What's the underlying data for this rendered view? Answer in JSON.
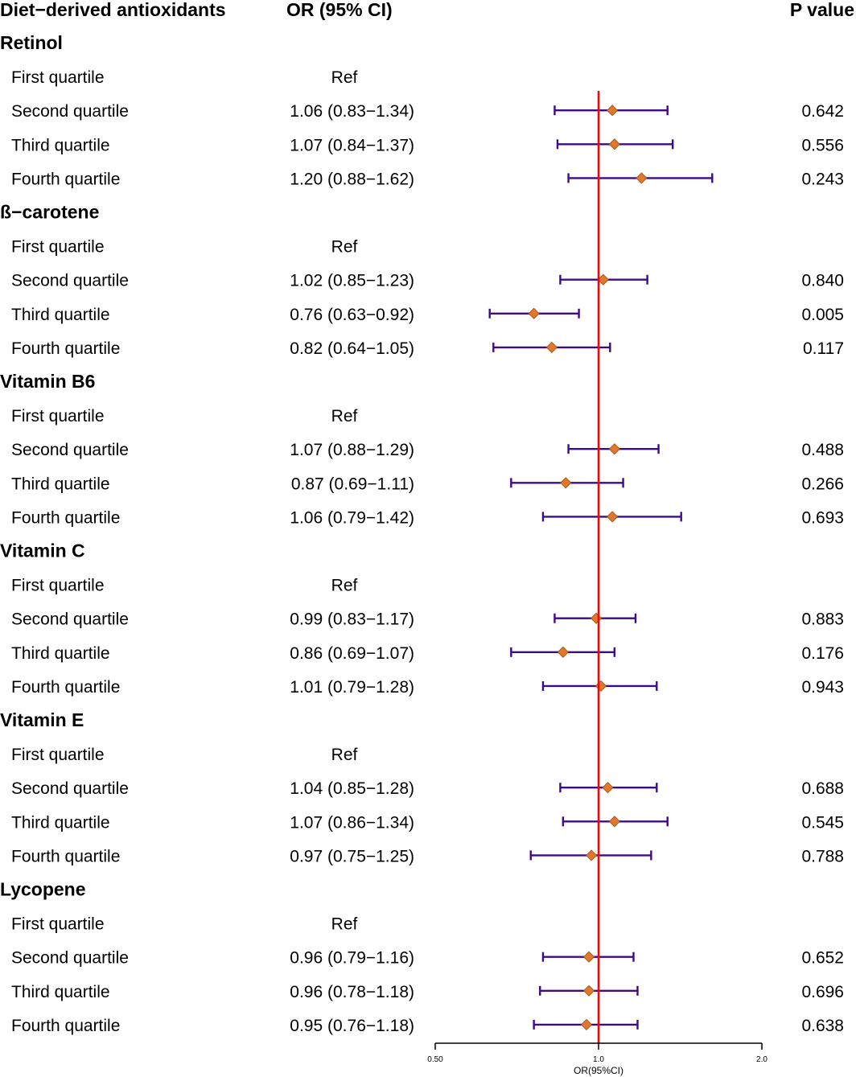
{
  "chart_data": {
    "type": "forest",
    "headers": {
      "label": "Diet−derived antioxidants",
      "or": "OR (95% CI)",
      "p": "P value"
    },
    "xlabel": "OR(95%CI)",
    "x_scale": "log2",
    "xlim": [
      0.5,
      2.0
    ],
    "x_ticks": [
      {
        "value": 0.5,
        "label": "0.50"
      },
      {
        "value": 1.0,
        "label": "1.0"
      },
      {
        "value": 2.0,
        "label": "2.0"
      }
    ],
    "reference_line": 1.0,
    "colors": {
      "reference_line": "#ff0000",
      "ci_line": "#3d0b8a",
      "point": "#e0772a",
      "point_border": "#a04a10"
    },
    "groups": [
      {
        "name": "Retinol",
        "rows": [
          {
            "label": "First  quartile",
            "or_text": "Ref",
            "p": ""
          },
          {
            "label": "Second quartile",
            "or_text": "1.06 (0.83−1.34)",
            "or": 1.06,
            "lo": 0.83,
            "hi": 1.34,
            "p": "0.642"
          },
          {
            "label": "Third  quartile",
            "or_text": "1.07 (0.84−1.37)",
            "or": 1.07,
            "lo": 0.84,
            "hi": 1.37,
            "p": "0.556"
          },
          {
            "label": "Fourth quartile",
            "or_text": "1.20 (0.88−1.62)",
            "or": 1.2,
            "lo": 0.88,
            "hi": 1.62,
            "p": "0.243"
          }
        ]
      },
      {
        "name": "ß−carotene",
        "rows": [
          {
            "label": "First  quartile",
            "or_text": "Ref",
            "p": ""
          },
          {
            "label": "Second quartile",
            "or_text": "1.02 (0.85−1.23)",
            "or": 1.02,
            "lo": 0.85,
            "hi": 1.23,
            "p": "0.840"
          },
          {
            "label": "Third  quartile",
            "or_text": "0.76 (0.63−0.92)",
            "or": 0.76,
            "lo": 0.63,
            "hi": 0.92,
            "p": "0.005"
          },
          {
            "label": "Fourth quartile",
            "or_text": "0.82 (0.64−1.05)",
            "or": 0.82,
            "lo": 0.64,
            "hi": 1.05,
            "p": "0.117"
          }
        ]
      },
      {
        "name": "Vitamin B6",
        "rows": [
          {
            "label": "First  quartile",
            "or_text": "Ref",
            "p": ""
          },
          {
            "label": "Second quartile",
            "or_text": "1.07 (0.88−1.29)",
            "or": 1.07,
            "lo": 0.88,
            "hi": 1.29,
            "p": "0.488"
          },
          {
            "label": "Third  quartile",
            "or_text": "0.87 (0.69−1.11)",
            "or": 0.87,
            "lo": 0.69,
            "hi": 1.11,
            "p": "0.266"
          },
          {
            "label": "Fourth quartile",
            "or_text": "1.06 (0.79−1.42)",
            "or": 1.06,
            "lo": 0.79,
            "hi": 1.42,
            "p": "0.693"
          }
        ]
      },
      {
        "name": "Vitamin C",
        "rows": [
          {
            "label": "First  quartile",
            "or_text": "Ref",
            "p": ""
          },
          {
            "label": "Second quartile",
            "or_text": "0.99 (0.83−1.17)",
            "or": 0.99,
            "lo": 0.83,
            "hi": 1.17,
            "p": "0.883"
          },
          {
            "label": "Third  quartile",
            "or_text": "0.86 (0.69−1.07)",
            "or": 0.86,
            "lo": 0.69,
            "hi": 1.07,
            "p": "0.176"
          },
          {
            "label": "Fourth quartile",
            "or_text": "1.01 (0.79−1.28)",
            "or": 1.01,
            "lo": 0.79,
            "hi": 1.28,
            "p": "0.943"
          }
        ]
      },
      {
        "name": "Vitamin E",
        "rows": [
          {
            "label": "First  quartile",
            "or_text": "Ref",
            "p": ""
          },
          {
            "label": "Second quartile",
            "or_text": "1.04 (0.85−1.28)",
            "or": 1.04,
            "lo": 0.85,
            "hi": 1.28,
            "p": "0.688"
          },
          {
            "label": "Third  quartile",
            "or_text": "1.07 (0.86−1.34)",
            "or": 1.07,
            "lo": 0.86,
            "hi": 1.34,
            "p": "0.545"
          },
          {
            "label": "Fourth quartile",
            "or_text": "0.97 (0.75−1.25)",
            "or": 0.97,
            "lo": 0.75,
            "hi": 1.25,
            "p": "0.788"
          }
        ]
      },
      {
        "name": "Lycopene",
        "rows": [
          {
            "label": "First  quartile",
            "or_text": "Ref",
            "p": ""
          },
          {
            "label": "Second quartile",
            "or_text": "0.96 (0.79−1.16)",
            "or": 0.96,
            "lo": 0.79,
            "hi": 1.16,
            "p": "0.652"
          },
          {
            "label": "Third  quartile",
            "or_text": "0.96 (0.78−1.18)",
            "or": 0.96,
            "lo": 0.78,
            "hi": 1.18,
            "p": "0.696"
          },
          {
            "label": "Fourth quartile",
            "or_text": "0.95 (0.76−1.18)",
            "or": 0.95,
            "lo": 0.76,
            "hi": 1.18,
            "p": "0.638"
          }
        ]
      }
    ]
  }
}
